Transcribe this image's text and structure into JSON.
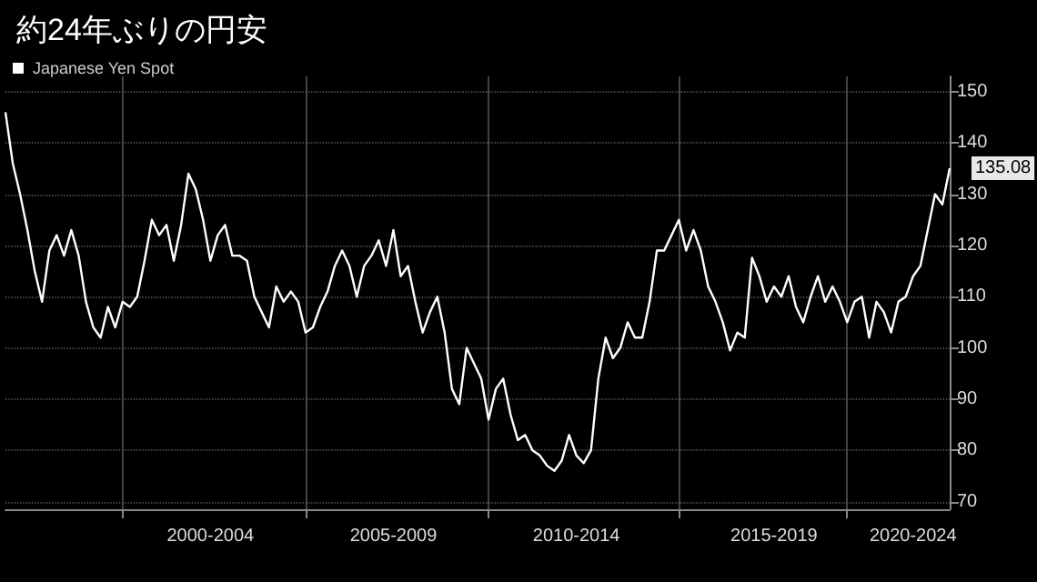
{
  "chart_data": {
    "type": "line",
    "title": "約24年ぶりの円安",
    "categories": [
      null,
      null,
      null,
      null,
      null,
      null,
      null,
      null,
      null,
      null,
      null,
      null,
      null,
      null,
      null,
      null,
      null,
      null,
      null,
      null,
      null,
      null,
      null,
      null,
      null,
      null,
      null,
      null,
      "2000-2004",
      null,
      null,
      null,
      null,
      null,
      null,
      null,
      null,
      null,
      null,
      null,
      null,
      null,
      null,
      null,
      null,
      null,
      null,
      null,
      null,
      null,
      null,
      null,
      null,
      "2005-2009",
      null,
      null,
      null,
      null,
      null,
      null,
      null,
      null,
      null,
      null,
      null,
      null,
      null,
      null,
      null,
      null,
      null,
      null,
      null,
      null,
      null,
      null,
      null,
      null,
      "2010-2014",
      null,
      null,
      null,
      null,
      null,
      null,
      null,
      null,
      null,
      null,
      null,
      null,
      null,
      null,
      null,
      null,
      null,
      null,
      null,
      null,
      null,
      null,
      null,
      null,
      null,
      null,
      "2015-2019",
      null,
      null,
      null,
      null,
      null,
      null,
      null,
      null,
      null,
      null,
      null,
      null,
      null,
      null,
      null,
      null,
      null,
      null,
      "2020-2024",
      null,
      null,
      null,
      null,
      null
    ],
    "series": [
      {
        "name": "Japanese Yen Spot",
        "color": "#ffffff",
        "values": [
          146,
          136,
          130,
          123,
          115,
          109,
          119,
          122,
          118,
          123,
          118,
          109,
          104,
          102,
          108,
          104,
          109,
          108,
          110,
          117,
          125,
          122,
          124,
          117,
          124,
          134,
          131,
          125,
          117,
          122,
          124,
          118,
          118,
          117,
          110,
          107,
          104,
          112,
          109,
          111,
          109,
          103,
          104,
          108,
          111,
          116,
          119,
          116,
          110,
          116,
          118,
          121,
          116,
          123,
          114,
          116,
          109,
          103,
          107,
          110,
          103,
          92,
          89,
          100,
          97,
          94,
          86,
          92,
          94,
          87,
          82,
          83,
          80,
          79,
          77,
          76,
          78,
          83,
          79,
          77.5,
          80,
          94,
          102,
          98,
          100,
          105,
          102,
          102,
          109,
          119,
          119,
          122,
          125,
          119,
          123,
          119,
          112,
          109,
          105,
          99.5,
          103,
          102,
          117.6,
          114,
          109,
          112,
          110,
          114,
          108,
          105,
          110,
          114,
          109,
          112,
          109,
          105,
          109,
          110,
          102,
          109,
          107,
          103,
          109,
          110,
          114,
          116,
          123,
          130,
          128,
          135.08
        ],
        "value_labels": [
          null,
          null,
          null,
          null,
          null,
          null,
          null,
          null,
          null,
          null,
          null,
          null,
          null,
          null,
          null,
          null,
          null,
          null,
          null,
          null,
          null,
          null,
          null,
          null,
          null,
          null,
          null,
          null,
          null,
          null,
          null,
          null,
          null,
          null,
          null,
          null,
          null,
          null,
          null,
          null,
          null,
          null,
          null,
          null,
          null,
          null,
          null,
          null,
          null,
          null,
          null,
          null,
          null,
          null,
          null,
          null,
          null,
          null,
          null,
          null,
          null,
          null,
          null,
          null,
          null,
          null,
          null,
          null,
          null,
          null,
          null,
          null,
          null,
          null,
          null,
          null,
          null,
          null,
          null,
          null,
          null,
          null,
          null,
          null,
          null,
          null,
          null,
          null,
          null,
          null,
          null,
          null,
          null,
          null,
          null,
          null,
          null,
          null,
          null,
          null,
          null,
          null,
          null,
          null,
          null,
          null,
          null,
          null,
          null,
          null,
          null,
          null,
          null,
          null,
          null,
          null,
          null,
          null,
          null,
          null,
          null,
          null,
          null,
          null,
          null,
          null,
          null,
          null,
          null,
          "135.08"
        ]
      }
    ],
    "ylim": [
      68.5,
      153
    ],
    "yticks": [
      70,
      80,
      90,
      100,
      110,
      120,
      130,
      140,
      150
    ],
    "grid": true,
    "legend": "top left",
    "marker": "none",
    "line_style": "solid"
  }
}
